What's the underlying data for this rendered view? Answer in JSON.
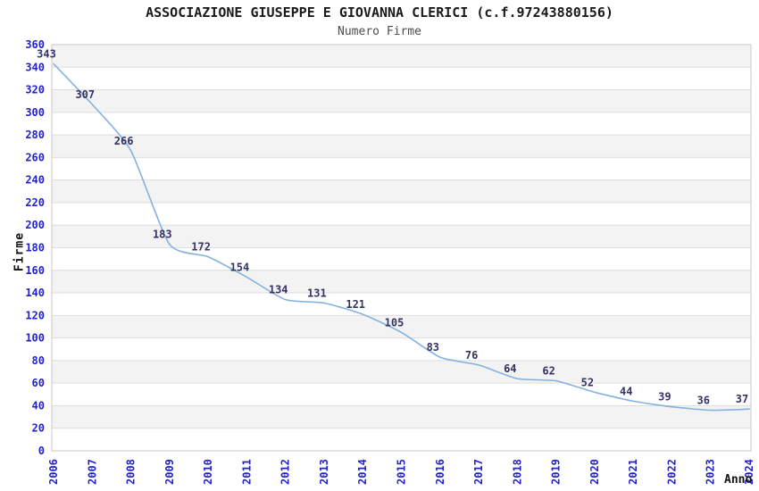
{
  "chart": {
    "title": "ASSOCIAZIONE GIUSEPPE E GIOVANNA CLERICI (c.f.97243880156)",
    "subtitle": "Numero Firme"
  },
  "chart_data": {
    "type": "line",
    "title": "ASSOCIAZIONE GIUSEPPE E GIOVANNA CLERICI (c.f.97243880156)",
    "subtitle": "Numero Firme",
    "xlabel": "Anno",
    "ylabel": "Firme",
    "x": [
      2006,
      2007,
      2008,
      2009,
      2010,
      2011,
      2012,
      2013,
      2014,
      2015,
      2016,
      2017,
      2018,
      2019,
      2020,
      2021,
      2022,
      2023,
      2024
    ],
    "values": [
      343,
      307,
      266,
      183,
      172,
      154,
      134,
      131,
      121,
      105,
      83,
      76,
      64,
      62,
      52,
      44,
      39,
      36,
      37
    ],
    "ylim": [
      0,
      360
    ],
    "ytick_step": 20,
    "grid": "horizontal-bands-alternating",
    "legend": "none",
    "data_labels_shown": true,
    "colors": {
      "line": "#85b1e1",
      "band_gray": "#f3f3f3",
      "band_white": "#ffffff",
      "gridline": "#dedede",
      "plot_border": "#c8c8c8",
      "tick_label": "#2222cc",
      "data_label": "#333366",
      "title": "#1a1a1a",
      "subtitle": "#4d4d4d",
      "axis_title": "#111111"
    }
  }
}
